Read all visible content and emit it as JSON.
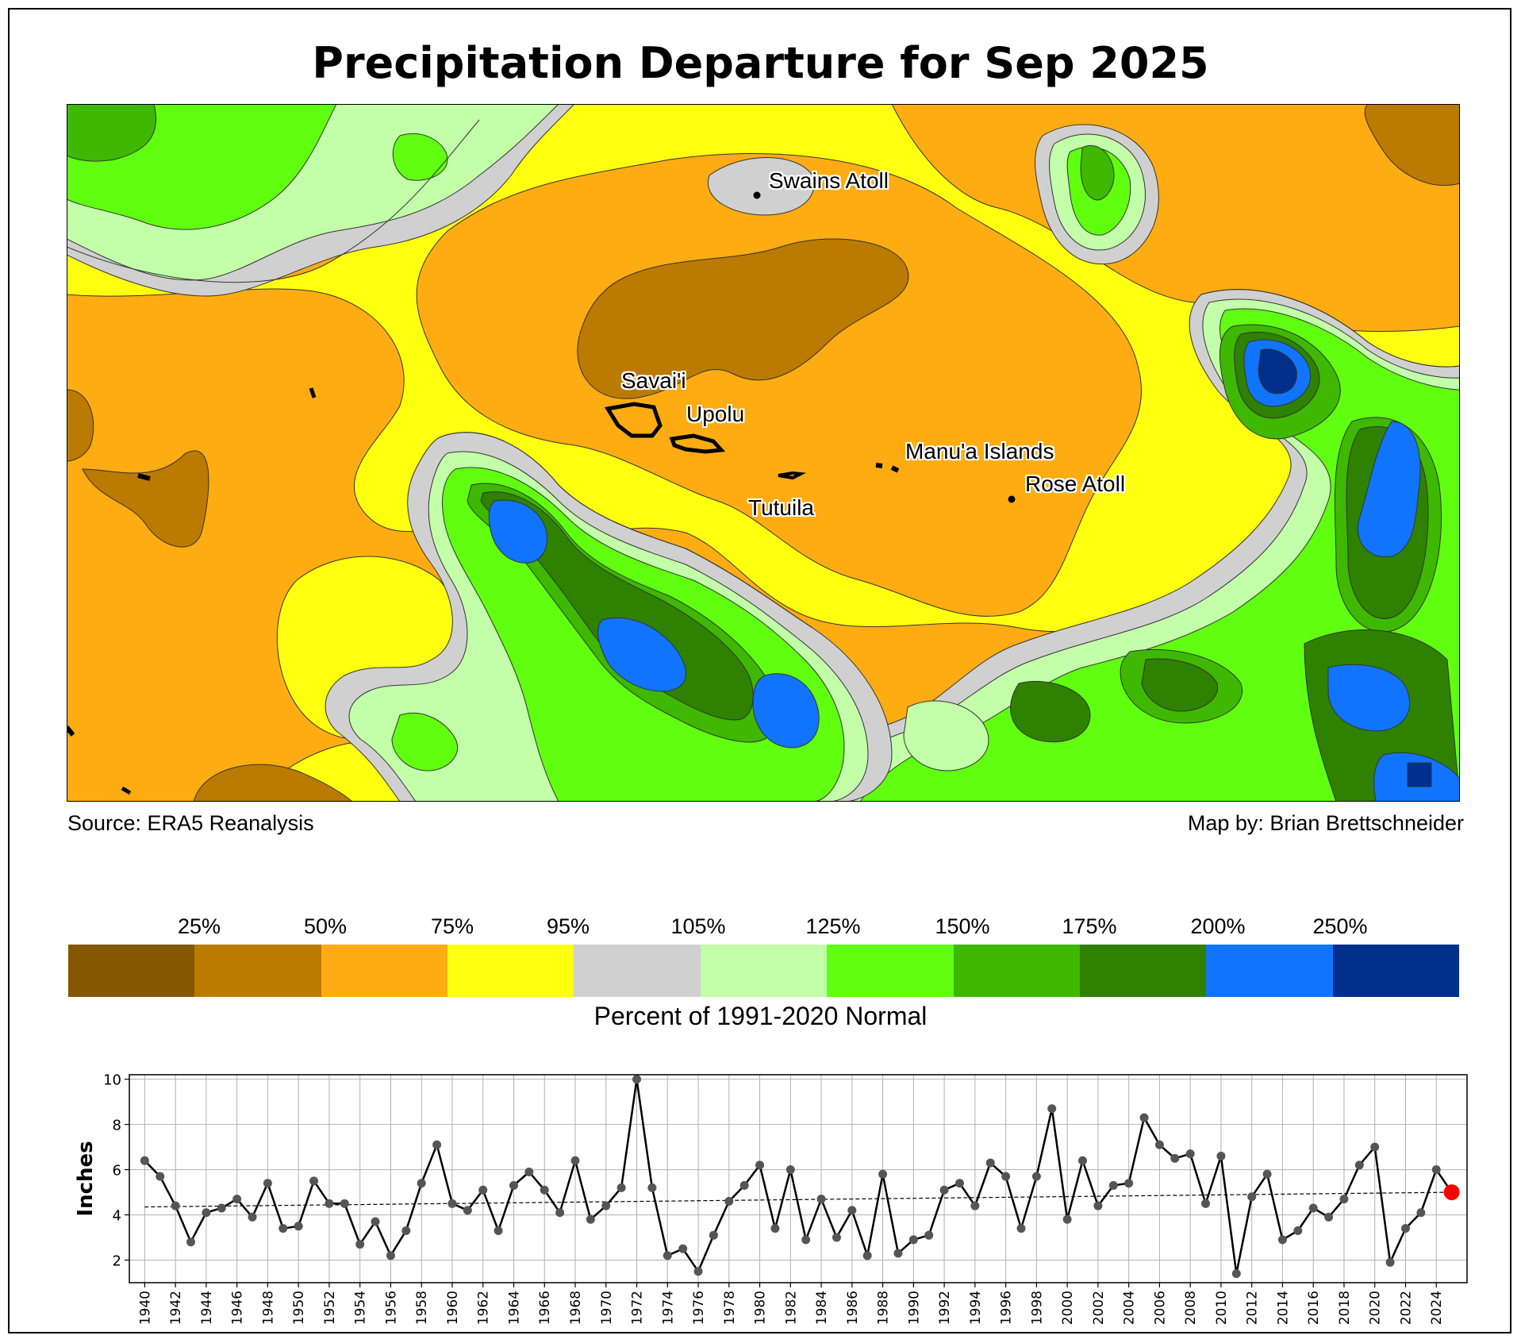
{
  "title": "Precipitation Departure for Sep 2025",
  "map": {
    "places": [
      {
        "label": "Swains Atoll"
      },
      {
        "label": "Savai'i"
      },
      {
        "label": "Upolu"
      },
      {
        "label": "Manu'a Islands"
      },
      {
        "label": "Rose Atoll"
      },
      {
        "label": "Tutuila"
      }
    ],
    "source": "Source: ERA5 Reanalysis",
    "credit": "Map by: Brian Brettschneider"
  },
  "legend": {
    "ticks": [
      "25%",
      "50%",
      "75%",
      "95%",
      "105%",
      "125%",
      "150%",
      "175%",
      "200%",
      "250%"
    ],
    "colors": [
      "#845800",
      "#bb7a00",
      "#ffac12",
      "#ffff10",
      "#d0d0d0",
      "#c2ffa8",
      "#60ff10",
      "#3eb800",
      "#2e8200",
      "#1074ff",
      "#00308c"
    ],
    "label": "Percent of 1991-2020 Normal"
  },
  "chart_data": {
    "type": "line",
    "ylabel": "Inches",
    "ylim": [
      1,
      10.2
    ],
    "yticks": [
      2,
      4,
      6,
      8,
      10
    ],
    "xlim": [
      1939,
      2026
    ],
    "xticks": [
      1940,
      1942,
      1944,
      1946,
      1948,
      1950,
      1952,
      1954,
      1956,
      1958,
      1960,
      1962,
      1964,
      1966,
      1968,
      1970,
      1972,
      1974,
      1976,
      1978,
      1980,
      1982,
      1984,
      1986,
      1988,
      1990,
      1992,
      1994,
      1996,
      1998,
      2000,
      2002,
      2004,
      2006,
      2008,
      2010,
      2012,
      2014,
      2016,
      2018,
      2020,
      2022,
      2024
    ],
    "grid": true,
    "x": [
      1940,
      1941,
      1942,
      1943,
      1944,
      1945,
      1946,
      1947,
      1948,
      1949,
      1950,
      1951,
      1952,
      1953,
      1954,
      1955,
      1956,
      1957,
      1958,
      1959,
      1960,
      1961,
      1962,
      1963,
      1964,
      1965,
      1966,
      1967,
      1968,
      1969,
      1970,
      1971,
      1972,
      1973,
      1974,
      1975,
      1976,
      1977,
      1978,
      1979,
      1980,
      1981,
      1982,
      1983,
      1984,
      1985,
      1986,
      1987,
      1988,
      1989,
      1990,
      1991,
      1992,
      1993,
      1994,
      1995,
      1996,
      1997,
      1998,
      1999,
      2000,
      2001,
      2002,
      2003,
      2004,
      2005,
      2006,
      2007,
      2008,
      2009,
      2010,
      2011,
      2012,
      2013,
      2014,
      2015,
      2016,
      2017,
      2018,
      2019,
      2020,
      2021,
      2022,
      2023,
      2024,
      2025
    ],
    "values": [
      6.4,
      5.7,
      4.4,
      2.8,
      4.1,
      4.3,
      4.7,
      3.9,
      5.4,
      3.4,
      3.5,
      5.5,
      4.5,
      4.5,
      2.7,
      3.7,
      2.2,
      3.3,
      5.4,
      7.1,
      4.5,
      4.2,
      5.1,
      3.3,
      5.3,
      5.9,
      5.1,
      4.1,
      6.4,
      3.8,
      4.4,
      5.2,
      10.0,
      5.2,
      2.2,
      2.5,
      1.5,
      3.1,
      4.6,
      5.3,
      6.2,
      3.4,
      6.0,
      2.9,
      4.7,
      3.0,
      4.2,
      2.2,
      5.8,
      2.3,
      2.9,
      3.1,
      5.1,
      5.4,
      4.4,
      6.3,
      5.7,
      3.4,
      5.7,
      8.7,
      3.8,
      6.4,
      4.4,
      5.3,
      5.4,
      8.3,
      7.1,
      6.5,
      6.7,
      4.5,
      6.6,
      1.4,
      4.8,
      5.8,
      2.9,
      3.3,
      4.3,
      3.9,
      4.7,
      6.2,
      7.0,
      1.9,
      3.4,
      4.1,
      6.0,
      5.0
    ],
    "trend": {
      "start": [
        1940,
        4.35
      ],
      "end": [
        2025,
        5.0
      ]
    },
    "highlight_year": 2025
  }
}
